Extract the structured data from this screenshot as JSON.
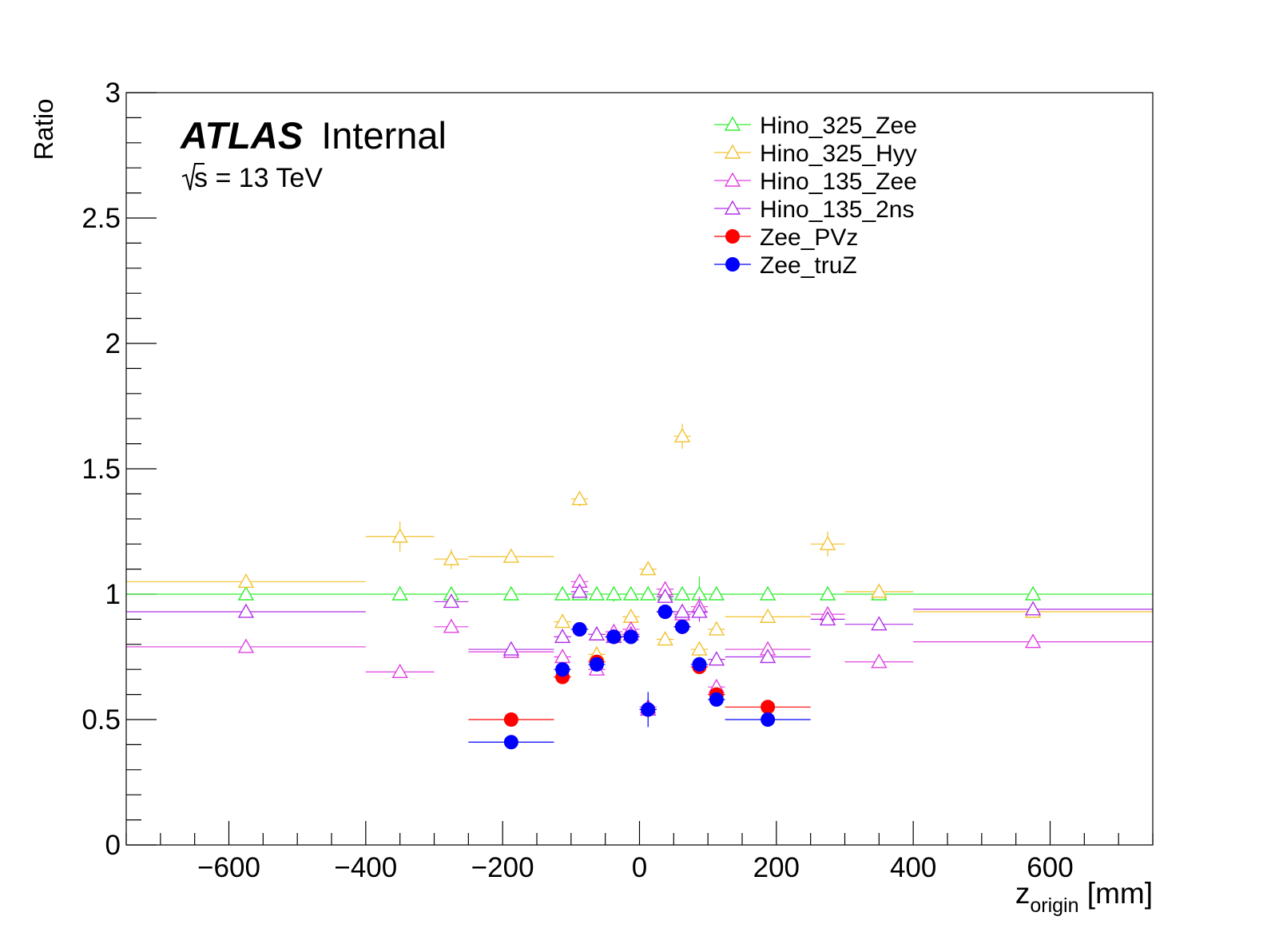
{
  "chart_data": {
    "type": "scatter",
    "title": "",
    "experiment": "ATLAS",
    "status": "Internal",
    "energy_prefix": "s",
    "energy_suffix": " = 13 TeV",
    "xlabel_main": "z",
    "xlabel_sub": "origin",
    "xlabel_unit": " [mm]",
    "ylabel": "Ratio",
    "xlim": [
      -750,
      750
    ],
    "ylim": [
      0,
      3
    ],
    "x_ticks": [
      -600,
      -400,
      -200,
      0,
      200,
      400,
      600
    ],
    "x_tick_labels": [
      "−600",
      "−400",
      "−200",
      "0",
      "200",
      "400",
      "600"
    ],
    "y_ticks": [
      0,
      0.5,
      1,
      1.5,
      2,
      2.5,
      3
    ],
    "y_tick_labels": [
      "0",
      "0.5",
      "1",
      "1.5",
      "2",
      "2.5",
      "3"
    ],
    "grid": false,
    "legend_position": "top-right",
    "series": [
      {
        "name": "Hino_325_Zee",
        "color": "#33ee33",
        "marker": "open-triangle",
        "points": [
          {
            "x": -575,
            "y": 1.0,
            "xerr": 175,
            "yerr": 0.01
          },
          {
            "x": -350,
            "y": 1.0,
            "xerr": 50,
            "yerr": 0.01
          },
          {
            "x": -275,
            "y": 1.0,
            "xerr": 25,
            "yerr": 0.01
          },
          {
            "x": -187.5,
            "y": 1.0,
            "xerr": 62.5,
            "yerr": 0.01
          },
          {
            "x": -112.5,
            "y": 1.0,
            "xerr": 12.5,
            "yerr": 0.01
          },
          {
            "x": -87.5,
            "y": 1.0,
            "xerr": 12.5,
            "yerr": 0.01
          },
          {
            "x": -62.5,
            "y": 1.0,
            "xerr": 12.5,
            "yerr": 0.01
          },
          {
            "x": -37.5,
            "y": 1.0,
            "xerr": 12.5,
            "yerr": 0.03
          },
          {
            "x": -12.5,
            "y": 1.0,
            "xerr": 12.5,
            "yerr": 0.01
          },
          {
            "x": 12.5,
            "y": 1.0,
            "xerr": 12.5,
            "yerr": 0.01
          },
          {
            "x": 37.5,
            "y": 1.0,
            "xerr": 12.5,
            "yerr": 0.01
          },
          {
            "x": 62.5,
            "y": 1.0,
            "xerr": 12.5,
            "yerr": 0.01
          },
          {
            "x": 87.5,
            "y": 1.0,
            "xerr": 12.5,
            "yerr": 0.07
          },
          {
            "x": 112.5,
            "y": 1.0,
            "xerr": 12.5,
            "yerr": 0.01
          },
          {
            "x": 187.5,
            "y": 1.0,
            "xerr": 62.5,
            "yerr": 0.01
          },
          {
            "x": 275,
            "y": 1.0,
            "xerr": 25,
            "yerr": 0.01
          },
          {
            "x": 350,
            "y": 1.0,
            "xerr": 50,
            "yerr": 0.01
          },
          {
            "x": 575,
            "y": 1.0,
            "xerr": 175,
            "yerr": 0.01
          }
        ]
      },
      {
        "name": "Hino_325_Hyy",
        "color": "#f2c12e",
        "marker": "open-triangle",
        "points": [
          {
            "x": -575,
            "y": 1.05,
            "xerr": 175,
            "yerr": 0.02
          },
          {
            "x": -350,
            "y": 1.23,
            "xerr": 50,
            "yerr": 0.06
          },
          {
            "x": -275,
            "y": 1.14,
            "xerr": 25,
            "yerr": 0.04
          },
          {
            "x": -187.5,
            "y": 1.15,
            "xerr": 62.5,
            "yerr": 0.02
          },
          {
            "x": -112.5,
            "y": 0.89,
            "xerr": 12.5,
            "yerr": 0.02
          },
          {
            "x": -87.5,
            "y": 1.38,
            "xerr": 12.5,
            "yerr": 0.03
          },
          {
            "x": -62.5,
            "y": 0.76,
            "xerr": 12.5,
            "yerr": 0.02
          },
          {
            "x": -37.5,
            "y": 0.84,
            "xerr": 12.5,
            "yerr": 0.02
          },
          {
            "x": -12.5,
            "y": 0.91,
            "xerr": 12.5,
            "yerr": 0.02
          },
          {
            "x": 12.5,
            "y": 1.1,
            "xerr": 12.5,
            "yerr": 0.02
          },
          {
            "x": 37.5,
            "y": 0.82,
            "xerr": 12.5,
            "yerr": 0.02
          },
          {
            "x": 62.5,
            "y": 1.63,
            "xerr": 12.5,
            "yerr": 0.05
          },
          {
            "x": 87.5,
            "y": 0.78,
            "xerr": 12.5,
            "yerr": 0.03
          },
          {
            "x": 112.5,
            "y": 0.86,
            "xerr": 12.5,
            "yerr": 0.02
          },
          {
            "x": 187.5,
            "y": 0.91,
            "xerr": 62.5,
            "yerr": 0.02
          },
          {
            "x": 275,
            "y": 1.2,
            "xerr": 25,
            "yerr": 0.05
          },
          {
            "x": 350,
            "y": 1.01,
            "xerr": 50,
            "yerr": 0.02
          },
          {
            "x": 575,
            "y": 0.93,
            "xerr": 175,
            "yerr": 0.02
          }
        ]
      },
      {
        "name": "Hino_135_Zee",
        "color": "#e040e0",
        "marker": "open-triangle",
        "points": [
          {
            "x": -575,
            "y": 0.79,
            "xerr": 175,
            "yerr": 0.01
          },
          {
            "x": -350,
            "y": 0.69,
            "xerr": 50,
            "yerr": 0.01
          },
          {
            "x": -275,
            "y": 0.87,
            "xerr": 25,
            "yerr": 0.01
          },
          {
            "x": -187.5,
            "y": 0.77,
            "xerr": 62.5,
            "yerr": 0.01
          },
          {
            "x": -112.5,
            "y": 0.75,
            "xerr": 12.5,
            "yerr": 0.01
          },
          {
            "x": -87.5,
            "y": 1.05,
            "xerr": 12.5,
            "yerr": 0.02
          },
          {
            "x": -62.5,
            "y": 0.7,
            "xerr": 12.5,
            "yerr": 0.01
          },
          {
            "x": -37.5,
            "y": 0.85,
            "xerr": 12.5,
            "yerr": 0.01
          },
          {
            "x": -12.5,
            "y": 0.86,
            "xerr": 12.5,
            "yerr": 0.01
          },
          {
            "x": 12.5,
            "y": 0.55,
            "xerr": 12.5,
            "yerr": 0.02
          },
          {
            "x": 37.5,
            "y": 1.02,
            "xerr": 12.5,
            "yerr": 0.01
          },
          {
            "x": 62.5,
            "y": 0.92,
            "xerr": 12.5,
            "yerr": 0.01
          },
          {
            "x": 87.5,
            "y": 0.95,
            "xerr": 12.5,
            "yerr": 0.04
          },
          {
            "x": 112.5,
            "y": 0.63,
            "xerr": 12.5,
            "yerr": 0.01
          },
          {
            "x": 187.5,
            "y": 0.78,
            "xerr": 62.5,
            "yerr": 0.01
          },
          {
            "x": 275,
            "y": 0.92,
            "xerr": 25,
            "yerr": 0.01
          },
          {
            "x": 350,
            "y": 0.73,
            "xerr": 50,
            "yerr": 0.01
          },
          {
            "x": 575,
            "y": 0.81,
            "xerr": 175,
            "yerr": 0.01
          }
        ]
      },
      {
        "name": "Hino_135_2ns",
        "color": "#b030e8",
        "marker": "open-triangle",
        "points": [
          {
            "x": -575,
            "y": 0.93,
            "xerr": 175,
            "yerr": 0.01
          },
          {
            "x": -275,
            "y": 0.97,
            "xerr": 25,
            "yerr": 0.01
          },
          {
            "x": -187.5,
            "y": 0.78,
            "xerr": 62.5,
            "yerr": 0.01
          },
          {
            "x": -112.5,
            "y": 0.83,
            "xerr": 12.5,
            "yerr": 0.01
          },
          {
            "x": -87.5,
            "y": 1.01,
            "xerr": 12.5,
            "yerr": 0.02
          },
          {
            "x": -62.5,
            "y": 0.84,
            "xerr": 12.5,
            "yerr": 0.01
          },
          {
            "x": -37.5,
            "y": 0.83,
            "xerr": 12.5,
            "yerr": 0.01
          },
          {
            "x": -12.5,
            "y": 0.84,
            "xerr": 12.5,
            "yerr": 0.01
          },
          {
            "x": 12.5,
            "y": 0.54,
            "xerr": 12.5,
            "yerr": 0.02
          },
          {
            "x": 37.5,
            "y": 0.99,
            "xerr": 12.5,
            "yerr": 0.01
          },
          {
            "x": 62.5,
            "y": 0.93,
            "xerr": 12.5,
            "yerr": 0.01
          },
          {
            "x": 87.5,
            "y": 0.93,
            "xerr": 12.5,
            "yerr": 0.04
          },
          {
            "x": 112.5,
            "y": 0.74,
            "xerr": 12.5,
            "yerr": 0.01
          },
          {
            "x": 187.5,
            "y": 0.75,
            "xerr": 62.5,
            "yerr": 0.01
          },
          {
            "x": 275,
            "y": 0.9,
            "xerr": 25,
            "yerr": 0.01
          },
          {
            "x": 350,
            "y": 0.88,
            "xerr": 50,
            "yerr": 0.01
          },
          {
            "x": 575,
            "y": 0.94,
            "xerr": 175,
            "yerr": 0.01
          }
        ]
      },
      {
        "name": "Zee_PVz",
        "color": "#ff0000",
        "marker": "filled-circle",
        "points": [
          {
            "x": -187.5,
            "y": 0.5,
            "xerr": 62.5,
            "yerr": 0.01
          },
          {
            "x": -112.5,
            "y": 0.67,
            "xerr": 12.5,
            "yerr": 0.01
          },
          {
            "x": -87.5,
            "y": 0.86,
            "xerr": 12.5,
            "yerr": 0.01
          },
          {
            "x": -62.5,
            "y": 0.73,
            "xerr": 12.5,
            "yerr": 0.01
          },
          {
            "x": -37.5,
            "y": 0.83,
            "xerr": 12.5,
            "yerr": 0.01
          },
          {
            "x": -12.5,
            "y": 0.83,
            "xerr": 12.5,
            "yerr": 0.01
          },
          {
            "x": 12.5,
            "y": 0.54,
            "xerr": 12.5,
            "yerr": 0.03
          },
          {
            "x": 37.5,
            "y": 0.93,
            "xerr": 12.5,
            "yerr": 0.01
          },
          {
            "x": 62.5,
            "y": 0.87,
            "xerr": 12.5,
            "yerr": 0.01
          },
          {
            "x": 87.5,
            "y": 0.71,
            "xerr": 12.5,
            "yerr": 0.02
          },
          {
            "x": 112.5,
            "y": 0.6,
            "xerr": 12.5,
            "yerr": 0.01
          },
          {
            "x": 187.5,
            "y": 0.55,
            "xerr": 62.5,
            "yerr": 0.01
          }
        ]
      },
      {
        "name": "Zee_truZ",
        "color": "#0000ff",
        "marker": "filled-circle",
        "points": [
          {
            "x": -187.5,
            "y": 0.41,
            "xerr": 62.5,
            "yerr": 0.01
          },
          {
            "x": -112.5,
            "y": 0.7,
            "xerr": 12.5,
            "yerr": 0.01
          },
          {
            "x": -87.5,
            "y": 0.86,
            "xerr": 12.5,
            "yerr": 0.01
          },
          {
            "x": -62.5,
            "y": 0.72,
            "xerr": 12.5,
            "yerr": 0.01
          },
          {
            "x": -37.5,
            "y": 0.83,
            "xerr": 12.5,
            "yerr": 0.01
          },
          {
            "x": -12.5,
            "y": 0.83,
            "xerr": 12.5,
            "yerr": 0.01
          },
          {
            "x": 12.5,
            "y": 0.54,
            "xerr": 12.5,
            "yerr": 0.07
          },
          {
            "x": 37.5,
            "y": 0.93,
            "xerr": 12.5,
            "yerr": 0.01
          },
          {
            "x": 62.5,
            "y": 0.87,
            "xerr": 12.5,
            "yerr": 0.01
          },
          {
            "x": 87.5,
            "y": 0.72,
            "xerr": 12.5,
            "yerr": 0.01
          },
          {
            "x": 112.5,
            "y": 0.58,
            "xerr": 12.5,
            "yerr": 0.01
          },
          {
            "x": 187.5,
            "y": 0.5,
            "xerr": 62.5,
            "yerr": 0.01
          }
        ]
      }
    ]
  }
}
